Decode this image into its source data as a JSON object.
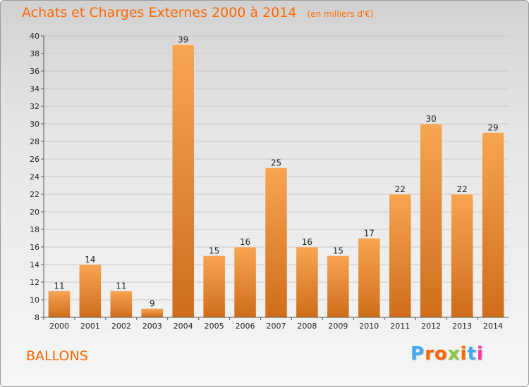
{
  "chart_data": {
    "type": "bar",
    "title": "Achats et Charges Externes 2000 à 2014",
    "subtitle": "(en milliers d'€)",
    "categories": [
      "2000",
      "2001",
      "2002",
      "2003",
      "2004",
      "2005",
      "2006",
      "2007",
      "2008",
      "2009",
      "2010",
      "2011",
      "2012",
      "2013",
      "2014"
    ],
    "values": [
      11,
      14,
      11,
      9,
      39,
      15,
      16,
      25,
      16,
      15,
      17,
      22,
      30,
      22,
      29
    ],
    "xlabel": "",
    "ylabel": "",
    "ylim": [
      8,
      40
    ],
    "yticks": [
      8,
      10,
      12,
      14,
      16,
      18,
      20,
      22,
      24,
      26,
      28,
      30,
      32,
      34,
      36,
      38,
      40
    ],
    "grid": true,
    "bar_color": "#f0913a"
  },
  "footer": {
    "commune": "BALLONS",
    "logo": "Proxiti",
    "logo_colors": [
      "#3fa9f5",
      "#ff6600",
      "#ff6600",
      "#8cc63f",
      "#ff6600",
      "#3fa9f5",
      "#ff3399"
    ]
  }
}
